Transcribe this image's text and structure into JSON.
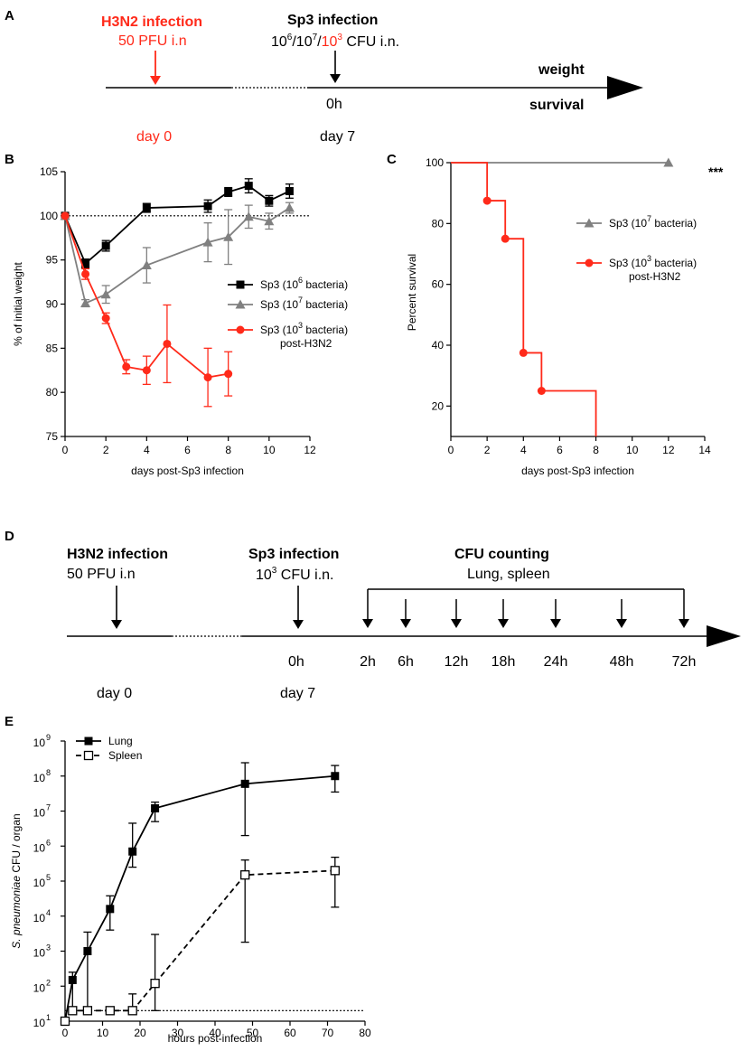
{
  "colors": {
    "red": "#ff2a1a",
    "black": "#000000",
    "gray": "#808080"
  },
  "panel_a": {
    "letter": "A",
    "h3n2_title": "H3N2 infection",
    "h3n2_dose": "50 PFU i.n",
    "sp3_title": "Sp3 infection",
    "sp3_dose_prefix": "10",
    "sp3_exp1": "6",
    "slash1": "/10",
    "sp3_exp2": "7",
    "slash2": "/",
    "sp3_red_base": "10",
    "sp3_exp3": "3",
    "sp3_dose_suffix": " CFU i.n.",
    "time0": "0h",
    "day0": "day 0",
    "day7": "day 7",
    "weight": "weight",
    "survival": "survival"
  },
  "panel_d": {
    "letter": "D",
    "h3n2_title": "H3N2 infection",
    "h3n2_dose": "50 PFU i.n",
    "sp3_title": "Sp3 infection",
    "sp3_base": "10",
    "sp3_exp": "3",
    "sp3_suffix": " CFU i.n.",
    "cfu_title": "CFU counting",
    "cfu_sub": "Lung, spleen",
    "time0": "0h",
    "timepoints": [
      "2h",
      "6h",
      "12h",
      "18h",
      "24h",
      "48h",
      "72h"
    ],
    "day0": "day 0",
    "day7": "day 7"
  },
  "chart_data": [
    {
      "panel": "B",
      "type": "line",
      "xlabel": "days post-Sp3 infection",
      "ylabel": "% of initial weight",
      "xlim": [
        0,
        12
      ],
      "ylim": [
        75,
        105
      ],
      "xticks": [
        "0",
        "2",
        "4",
        "6",
        "8",
        "10",
        "12"
      ],
      "yticks": [
        "75",
        "80",
        "85",
        "90",
        "95",
        "100",
        "105"
      ],
      "reference_line": 100,
      "series": [
        {
          "name": "Sp3 (10^6 bacteria)",
          "legend_base": "Sp3 (10",
          "legend_exp": "6",
          "legend_tail": "  bacteria)",
          "legend_line2": "",
          "color": "#000000",
          "marker": "square",
          "x": [
            0,
            1,
            2,
            4,
            7,
            8,
            9,
            10,
            11
          ],
          "y": [
            100,
            94.6,
            96.6,
            100.9,
            101.1,
            102.7,
            103.4,
            101.7,
            102.8
          ],
          "err": [
            0,
            0.5,
            0.6,
            0.5,
            0.7,
            0.5,
            0.8,
            0.6,
            0.8
          ]
        },
        {
          "name": "Sp3 (10^7 bacteria)",
          "legend_base": "Sp3 (10",
          "legend_exp": "7",
          "legend_tail": "  bacteria)",
          "legend_line2": "",
          "color": "#808080",
          "marker": "triangle",
          "x": [
            0,
            1,
            2,
            4,
            7,
            8,
            9,
            10,
            11
          ],
          "y": [
            100,
            90.1,
            91.1,
            94.4,
            97.0,
            97.6,
            99.9,
            99.4,
            100.9
          ],
          "err": [
            0,
            0.4,
            1.0,
            2.0,
            2.2,
            3.1,
            1.3,
            0.9,
            0.6
          ]
        },
        {
          "name": "Sp3 (10^3 bacteria) post-H3N2",
          "legend_base": "Sp3 (10",
          "legend_exp": "3",
          "legend_tail": " bacteria)",
          "legend_line2": "post-H3N2",
          "color": "#ff2a1a",
          "marker": "circle",
          "x": [
            0,
            1,
            2,
            3,
            4,
            5,
            7,
            8
          ],
          "y": [
            100,
            93.4,
            88.4,
            82.9,
            82.5,
            85.5,
            81.7,
            82.1
          ],
          "err": [
            0,
            0.6,
            0.6,
            0.8,
            1.6,
            4.4,
            3.3,
            2.5
          ]
        }
      ]
    },
    {
      "panel": "C",
      "type": "line",
      "subtype": "survival",
      "xlabel": "days post-Sp3 infection",
      "ylabel": "Percent survival",
      "xlim": [
        0,
        14
      ],
      "ylim": [
        10,
        100
      ],
      "xticks": [
        "0",
        "2",
        "4",
        "6",
        "8",
        "10",
        "12",
        "14"
      ],
      "yticks": [
        "20",
        "40",
        "60",
        "80",
        "100"
      ],
      "significance": "***",
      "series": [
        {
          "name": "Sp3 (10^7 bacteria)",
          "legend_base": "Sp3 (10",
          "legend_exp": "7",
          "legend_tail": " bacteria)",
          "legend_line2": "",
          "color": "#808080",
          "marker": "triangle",
          "x": [
            0,
            12
          ],
          "y": [
            100,
            100
          ],
          "markers_x": [
            12
          ],
          "markers_y": [
            100
          ]
        },
        {
          "name": "Sp3 (10^3 bacteria) post-H3N2",
          "legend_base": "Sp3 (10",
          "legend_exp": "3",
          "legend_tail": " bacteria)",
          "legend_line2": "post-H3N2",
          "color": "#ff2a1a",
          "marker": "circle",
          "x": [
            0,
            2,
            3,
            4,
            5,
            8
          ],
          "y": [
            100,
            87.5,
            75,
            37.5,
            25,
            0
          ],
          "markers_x": [
            2,
            3,
            4,
            5
          ],
          "markers_y": [
            87.5,
            75,
            37.5,
            25
          ]
        }
      ]
    },
    {
      "panel": "E",
      "type": "line",
      "scale": "log",
      "xlabel": "hours post-infection",
      "ylabel_italic": "S. pneumoniae",
      "ylabel_rest": " CFU / organ",
      "xlim": [
        0,
        80
      ],
      "ylim_log10": [
        1,
        9
      ],
      "xticks": [
        "0",
        "10",
        "20",
        "30",
        "40",
        "50",
        "60",
        "70",
        "80"
      ],
      "yticks_exp": [
        "1",
        "2",
        "3",
        "4",
        "5",
        "6",
        "7",
        "8",
        "9"
      ],
      "ytick_base": "10",
      "detection_limit": 20,
      "series": [
        {
          "name": "Lung",
          "color": "#000000",
          "marker": "square-filled",
          "dash": false,
          "x": [
            0,
            2,
            6,
            12,
            18,
            24,
            48,
            72
          ],
          "y": [
            10,
            150,
            1000,
            16000,
            700000,
            12000000,
            60000000,
            100000000
          ],
          "err_hi": [
            10,
            250,
            3500,
            38000,
            4500000,
            18000000,
            240000000,
            200000000
          ],
          "err_lo": [
            10,
            20,
            20,
            4000,
            250000,
            5000000,
            2000000,
            35000000
          ]
        },
        {
          "name": "Spleen",
          "color": "#000000",
          "marker": "square-open",
          "dash": true,
          "x": [
            0,
            2,
            6,
            12,
            18,
            24,
            48,
            72
          ],
          "y": [
            10,
            20,
            20,
            20,
            20,
            120,
            150000,
            200000
          ],
          "err_hi": [
            10,
            20,
            20,
            20,
            60,
            3000,
            400000,
            480000
          ],
          "err_lo": [
            10,
            20,
            20,
            20,
            20,
            20,
            1800,
            18000
          ]
        }
      ]
    }
  ]
}
